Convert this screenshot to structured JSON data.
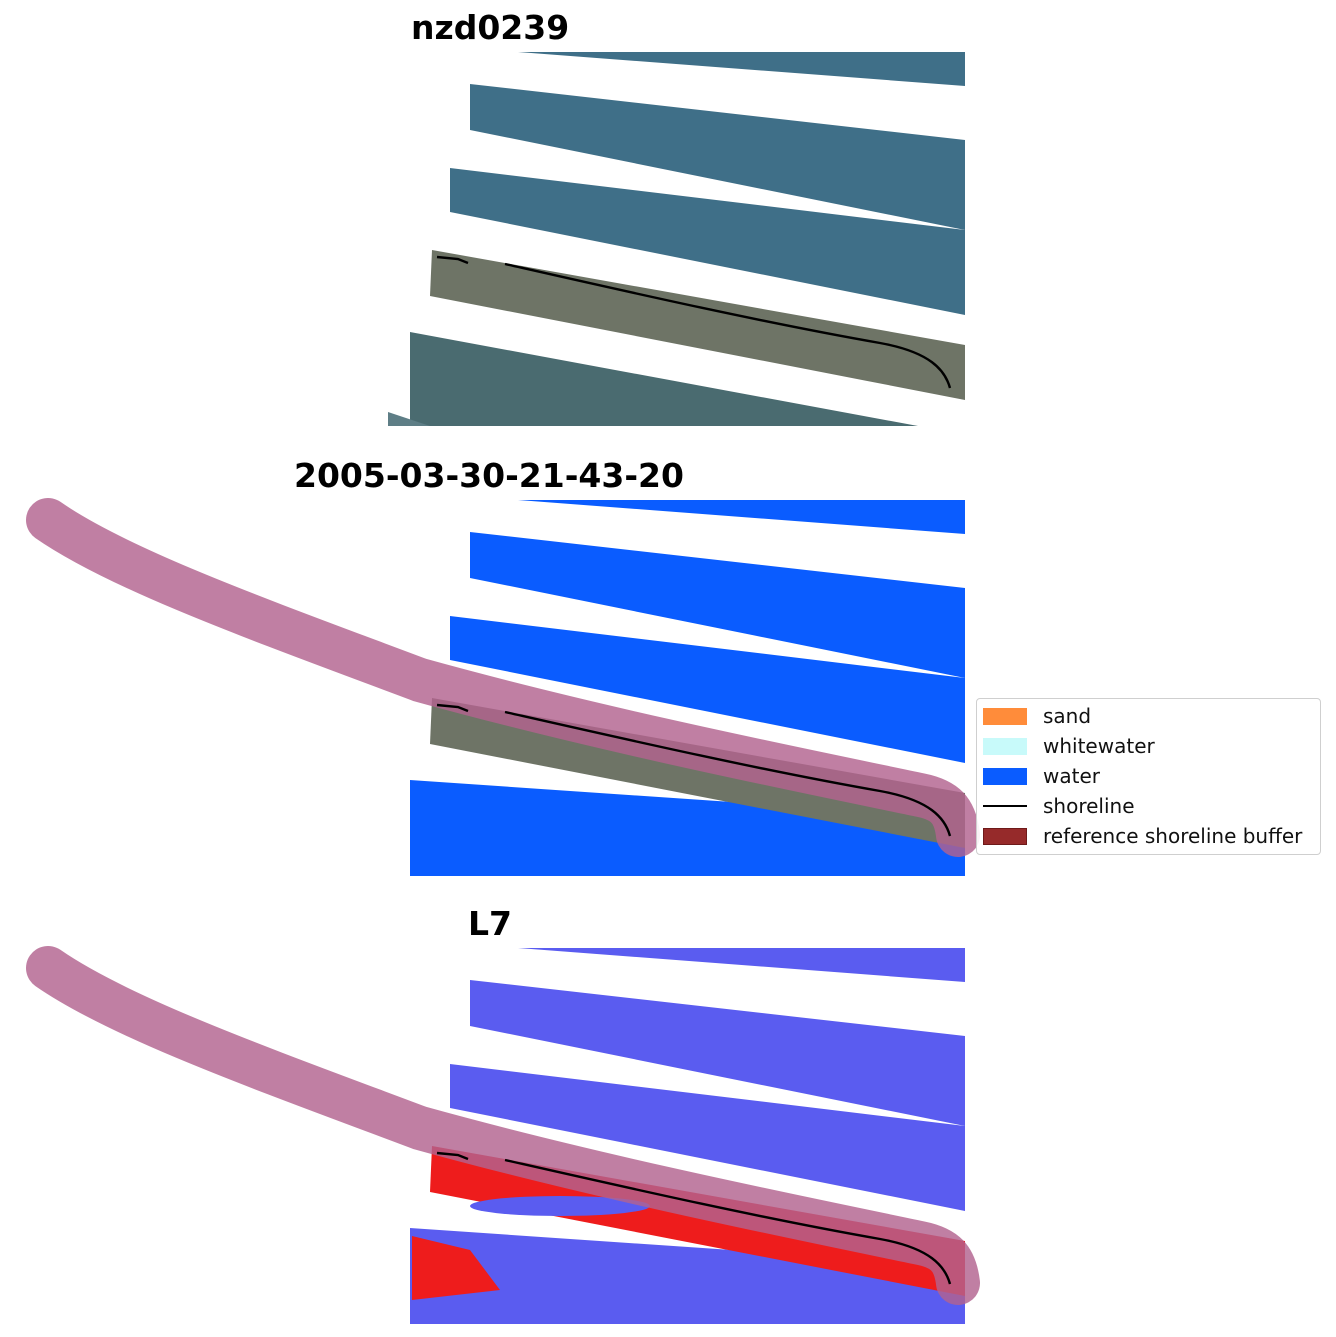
{
  "panels": {
    "rgb": {
      "title": "nzd0239"
    },
    "classified": {
      "title": "2005-03-30-21-43-20"
    },
    "mndwi": {
      "title": "L7"
    }
  },
  "legend": {
    "items": [
      {
        "label": "sand",
        "color": "#ff8c3a",
        "kind": "patch"
      },
      {
        "label": "whitewater",
        "color": "#c8fafa",
        "kind": "patch"
      },
      {
        "label": "water",
        "color": "#0a5cff",
        "kind": "patch"
      },
      {
        "label": "shoreline",
        "color": "#000000",
        "kind": "line"
      },
      {
        "label": "reference shoreline buffer",
        "color": "#962a2a",
        "kind": "patch"
      }
    ]
  },
  "colors": {
    "ocean_rgb": "#3f6f88",
    "land_rgb": "#6e7466",
    "water_class": "#0a5cff",
    "buffer_overlay": "#b2638f",
    "mndwi_water": "#5a5cf0",
    "mndwi_land": "#ee1c1c"
  }
}
